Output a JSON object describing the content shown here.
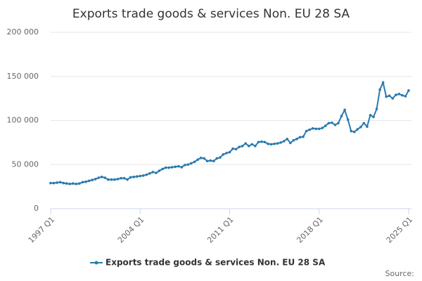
{
  "chart_data": {
    "type": "line",
    "title": "Exports trade goods & services Non. EU 28 SA",
    "source": "Source:",
    "categories": [
      "1997 Q1",
      null,
      null,
      null,
      null,
      null,
      null,
      null,
      null,
      null,
      null,
      null,
      null,
      null,
      null,
      null,
      null,
      null,
      null,
      null,
      null,
      null,
      null,
      null,
      null,
      null,
      null,
      null,
      "2004 Q1",
      null,
      null,
      null,
      null,
      null,
      null,
      null,
      null,
      null,
      null,
      null,
      null,
      null,
      null,
      null,
      null,
      null,
      null,
      null,
      null,
      null,
      null,
      null,
      null,
      null,
      null,
      null,
      "2011 Q1",
      null,
      null,
      null,
      null,
      null,
      null,
      null,
      null,
      null,
      null,
      null,
      null,
      null,
      null,
      null,
      null,
      null,
      null,
      null,
      null,
      null,
      null,
      null,
      null,
      null,
      null,
      null,
      "2018 Q1",
      null,
      null,
      null,
      null,
      null,
      null,
      null,
      null,
      null,
      null,
      null,
      null,
      null,
      null,
      null,
      null,
      null,
      null,
      null,
      null,
      null,
      null,
      null,
      null,
      null,
      null,
      null,
      "2025 Q1"
    ],
    "series": [
      {
        "name": "Exports trade goods & services Non. EU 28 SA",
        "color": "#2a7ab0",
        "values": [
          29000,
          29000,
          29500,
          30000,
          29000,
          28500,
          28000,
          28500,
          28000,
          28500,
          30000,
          30500,
          31500,
          32500,
          33500,
          35000,
          36000,
          35000,
          33000,
          33000,
          33000,
          33500,
          34500,
          34500,
          33000,
          35500,
          36000,
          36500,
          37000,
          37500,
          38500,
          40000,
          41500,
          40500,
          43000,
          45000,
          46500,
          46500,
          47000,
          47500,
          48000,
          47000,
          49500,
          50000,
          51500,
          53000,
          55500,
          57500,
          57000,
          54000,
          54500,
          54000,
          57000,
          58000,
          61500,
          63000,
          64000,
          68000,
          67500,
          70000,
          71000,
          74000,
          71000,
          73000,
          71000,
          75500,
          76000,
          75500,
          73500,
          73000,
          73500,
          74000,
          75000,
          76500,
          79000,
          74500,
          77500,
          79000,
          81000,
          81500,
          88000,
          89500,
          91000,
          90500,
          90500,
          91500,
          94000,
          97000,
          97500,
          95000,
          97000,
          105000,
          112000,
          101000,
          88000,
          87000,
          90000,
          92500,
          97000,
          93000,
          106000,
          104000,
          113000,
          135000,
          143000,
          127000,
          128000,
          125000,
          129000,
          130000,
          128500,
          127500,
          134000
        ]
      }
    ],
    "ylim": [
      0,
      200000
    ],
    "yticks": [
      0,
      {
        "value": 50000,
        "label": "50 000"
      },
      {
        "value": 100000,
        "label": "100 000"
      },
      {
        "value": 150000,
        "label": "150 000"
      },
      {
        "value": 200000,
        "label": "200 000"
      }
    ],
    "grid": true
  }
}
